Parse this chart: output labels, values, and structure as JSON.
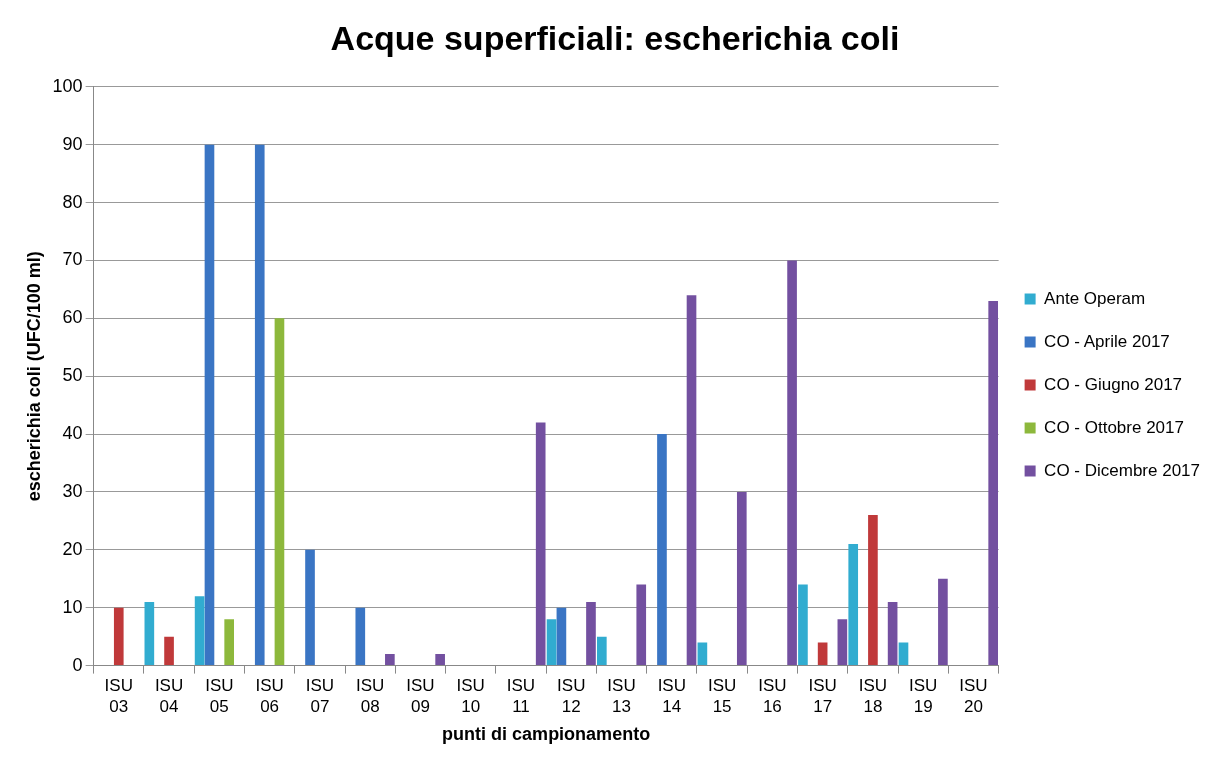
{
  "chart_data": {
    "type": "bar",
    "title": "Acque superficiali: escherichia coli",
    "xlabel": "punti di campionamento",
    "ylabel": "escherichia coli (UFC/100 ml)",
    "categories": [
      "ISU 03",
      "ISU 04",
      "ISU 05",
      "ISU 06",
      "ISU 07",
      "ISU 08",
      "ISU 09",
      "ISU 10",
      "ISU 11",
      "ISU 12",
      "ISU 13",
      "ISU 14",
      "ISU 15",
      "ISU 16",
      "ISU 17",
      "ISU 18",
      "ISU 19",
      "ISU 20"
    ],
    "series": [
      {
        "name": "Ante Operam",
        "color": "#31acd0",
        "values": [
          null,
          11,
          12,
          null,
          null,
          null,
          null,
          null,
          null,
          8,
          5,
          null,
          4,
          null,
          14,
          21,
          4,
          null
        ]
      },
      {
        "name": "CO - Aprile 2017",
        "color": "#3a75c4",
        "values": [
          null,
          null,
          90,
          90,
          20,
          10,
          null,
          null,
          null,
          10,
          null,
          40,
          null,
          null,
          null,
          null,
          null,
          null
        ]
      },
      {
        "name": "CO - Giugno 2017",
        "color": "#c0393a",
        "values": [
          10,
          5,
          null,
          null,
          null,
          null,
          null,
          null,
          null,
          null,
          null,
          null,
          null,
          null,
          4,
          26,
          null,
          null
        ]
      },
      {
        "name": "CO - Ottobre 2017",
        "color": "#8db83c",
        "values": [
          null,
          null,
          8,
          60,
          null,
          null,
          null,
          null,
          null,
          null,
          null,
          null,
          null,
          null,
          null,
          null,
          null,
          null
        ]
      },
      {
        "name": "CO - Dicembre 2017",
        "color": "#7350a0",
        "values": [
          null,
          null,
          null,
          null,
          null,
          2,
          2,
          null,
          42,
          11,
          14,
          64,
          30,
          70,
          8,
          11,
          15,
          63
        ]
      }
    ],
    "ylim": [
      0,
      100
    ],
    "yticks": [
      0,
      10,
      20,
      30,
      40,
      50,
      60,
      70,
      80,
      90,
      100
    ],
    "grid": "y",
    "legend": "right"
  }
}
